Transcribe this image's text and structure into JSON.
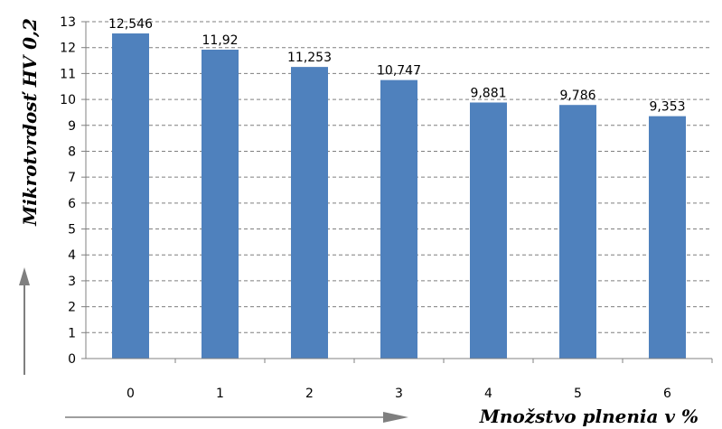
{
  "chart_data": {
    "type": "bar",
    "categories": [
      "0",
      "1",
      "2",
      "3",
      "4",
      "5",
      "6"
    ],
    "values": [
      12.546,
      11.92,
      11.253,
      10.747,
      9.881,
      9.786,
      9.353
    ],
    "data_labels": [
      "12,546",
      "11,92",
      "11,253",
      "10,747",
      "9,881",
      "9,786",
      "9,353"
    ],
    "xlabel": "Množstvo plnenia v %",
    "ylabel": "Mikrotvrdosť HV 0,2",
    "ylim": [
      0,
      13
    ],
    "yticks": [
      "0",
      "1",
      "2",
      "3",
      "4",
      "5",
      "6",
      "7",
      "8",
      "9",
      "10",
      "11",
      "12",
      "13"
    ],
    "grid": true,
    "gridline_style": "dashed",
    "bar_color": "#4f81bd",
    "arrow_color": "#7f7f7f"
  }
}
